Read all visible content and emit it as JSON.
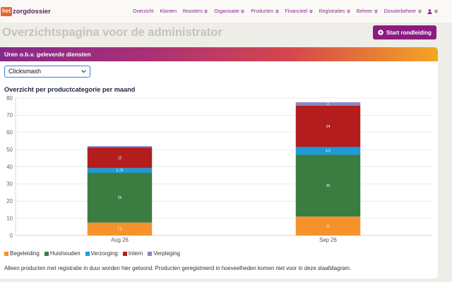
{
  "logo": {
    "prefix": "het",
    "name": "zorgdossier"
  },
  "nav": {
    "items": [
      {
        "label": "Overzicht",
        "has_dropdown": false
      },
      {
        "label": "Klanten",
        "has_dropdown": false
      },
      {
        "label": "Roosters",
        "has_dropdown": true
      },
      {
        "label": "Organisatie",
        "has_dropdown": true
      },
      {
        "label": "Producten",
        "has_dropdown": true
      },
      {
        "label": "Financieel",
        "has_dropdown": true
      },
      {
        "label": "Registraties",
        "has_dropdown": true
      },
      {
        "label": "Beheer",
        "has_dropdown": true
      },
      {
        "label": "Dossierbeheer",
        "has_dropdown": true
      }
    ],
    "user_menu": {
      "icon": "user-icon",
      "has_dropdown": true
    },
    "dropdown_icon": "chevron-double-down-icon"
  },
  "page": {
    "title": "Overzichtspagina voor de administrator"
  },
  "tour_button": {
    "label": "Start rondleiding",
    "icon": "plus-circle-icon"
  },
  "card": {
    "header": "Uren o.b.v. geleverde diensten",
    "client_select": {
      "value": "Clicksmash",
      "icon": "chevron-down-icon"
    },
    "footnote": "Alleen producten met registratie in duur worden hier getoond. Producten geregistreerd in hoeveelheden komen niet voor in deze staafdiagram."
  },
  "theme": {
    "brand": "#8a2a8c",
    "button": "#8b1c82",
    "select_focus": "#3a7be0",
    "header_gradient": [
      "#86298a",
      "#a93076",
      "#d6474c",
      "#f3a624"
    ]
  },
  "chart_data": {
    "type": "bar",
    "stacked": true,
    "title": "Overzicht per productcategorie per maand",
    "categories": [
      "Aug 26",
      "Sep 26"
    ],
    "series": [
      {
        "name": "Begeleiding",
        "color": "#f5922b",
        "values": [
          7.5,
          11
        ]
      },
      {
        "name": "Huishouden",
        "color": "#3b7c41",
        "values": [
          29,
          36
        ]
      },
      {
        "name": "Verzorging",
        "color": "#1e9ad6",
        "values": [
          2.75,
          4.5
        ]
      },
      {
        "name": "Intern",
        "color": "#b31d1d",
        "values": [
          12,
          24
        ]
      },
      {
        "name": "Verpleging",
        "color": "#8c84c4",
        "values": [
          0.75,
          2
        ]
      }
    ],
    "ylim": [
      0,
      80
    ],
    "yticks": [
      0,
      10,
      20,
      30,
      40,
      50,
      60,
      70,
      80
    ],
    "grid": true,
    "data_labels": true,
    "legend": "bottom-left"
  }
}
